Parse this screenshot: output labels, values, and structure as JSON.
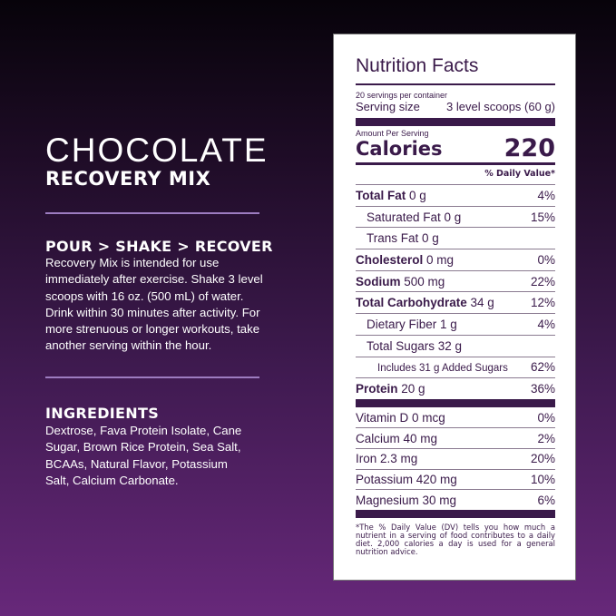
{
  "left": {
    "title": "CHOCOLATE",
    "subtitle": "RECOVERY MIX",
    "directions_heading": "POUR > SHAKE > RECOVER",
    "directions_lines": [
      "Recovery Mix is intended for use",
      "immediately after exercise. Shake 3 level",
      "scoops with 16 oz. (500 mL) of water.",
      "Drink within 30 minutes after activity. For",
      "more strenuous or longer workouts, take",
      "another serving within the hour."
    ],
    "ingredients_heading": "INGREDIENTS",
    "ingredients_lines": [
      "Dextrose, Fava Protein Isolate, Cane",
      "Sugar, Brown Rice Protein, Sea Salt,",
      "BCAAs, Natural Flavor, Potassium",
      "Salt, Calcium Carbonate."
    ]
  },
  "label": {
    "title": "Nutrition Facts",
    "servings": "20 servings per container",
    "serving_size_label": "Serving size",
    "serving_size": "3 level scoops (60 g)",
    "amount_per_serving": "Amount Per Serving",
    "calories_label": "Calories",
    "calories": "220",
    "dv_header": "% Daily Value*",
    "rows": [
      {
        "name": "Total Fat",
        "amount": "0 g",
        "dv": "4%"
      },
      {
        "name": "Saturated Fat 0 g",
        "amount": "",
        "dv": "15%"
      },
      {
        "name": "Trans Fat 0 g",
        "amount": "",
        "dv": ""
      },
      {
        "name": "Cholesterol",
        "amount": "0 mg",
        "dv": "0%"
      },
      {
        "name": "Sodium",
        "amount": "500 mg",
        "dv": "22%"
      },
      {
        "name": "Total Carbohydrate",
        "amount": "34 g",
        "dv": "12%"
      },
      {
        "name": "Dietary Fiber 1 g",
        "amount": "",
        "dv": "4%"
      },
      {
        "name": "Total Sugars 32 g",
        "amount": "",
        "dv": ""
      },
      {
        "name": "Includes 31 g Added Sugars",
        "amount": "",
        "dv": "62%"
      },
      {
        "name": "Protein",
        "amount": "20 g",
        "dv": "36%"
      }
    ],
    "vitamins": [
      {
        "name": "Vitamin D 0 mcg",
        "dv": "0%"
      },
      {
        "name": "Calcium 40 mg",
        "dv": "2%"
      },
      {
        "name": "Iron 2.3 mg",
        "dv": "20%"
      },
      {
        "name": "Potassium 420 mg",
        "dv": "10%"
      },
      {
        "name": "Magnesium 30 mg",
        "dv": "6%"
      }
    ],
    "footnote": "*The % Daily Value (DV) tells you how much a nutrient in a serving of food contributes to a daily diet. 2,000 calories a day is used for a general nutrition advice."
  }
}
